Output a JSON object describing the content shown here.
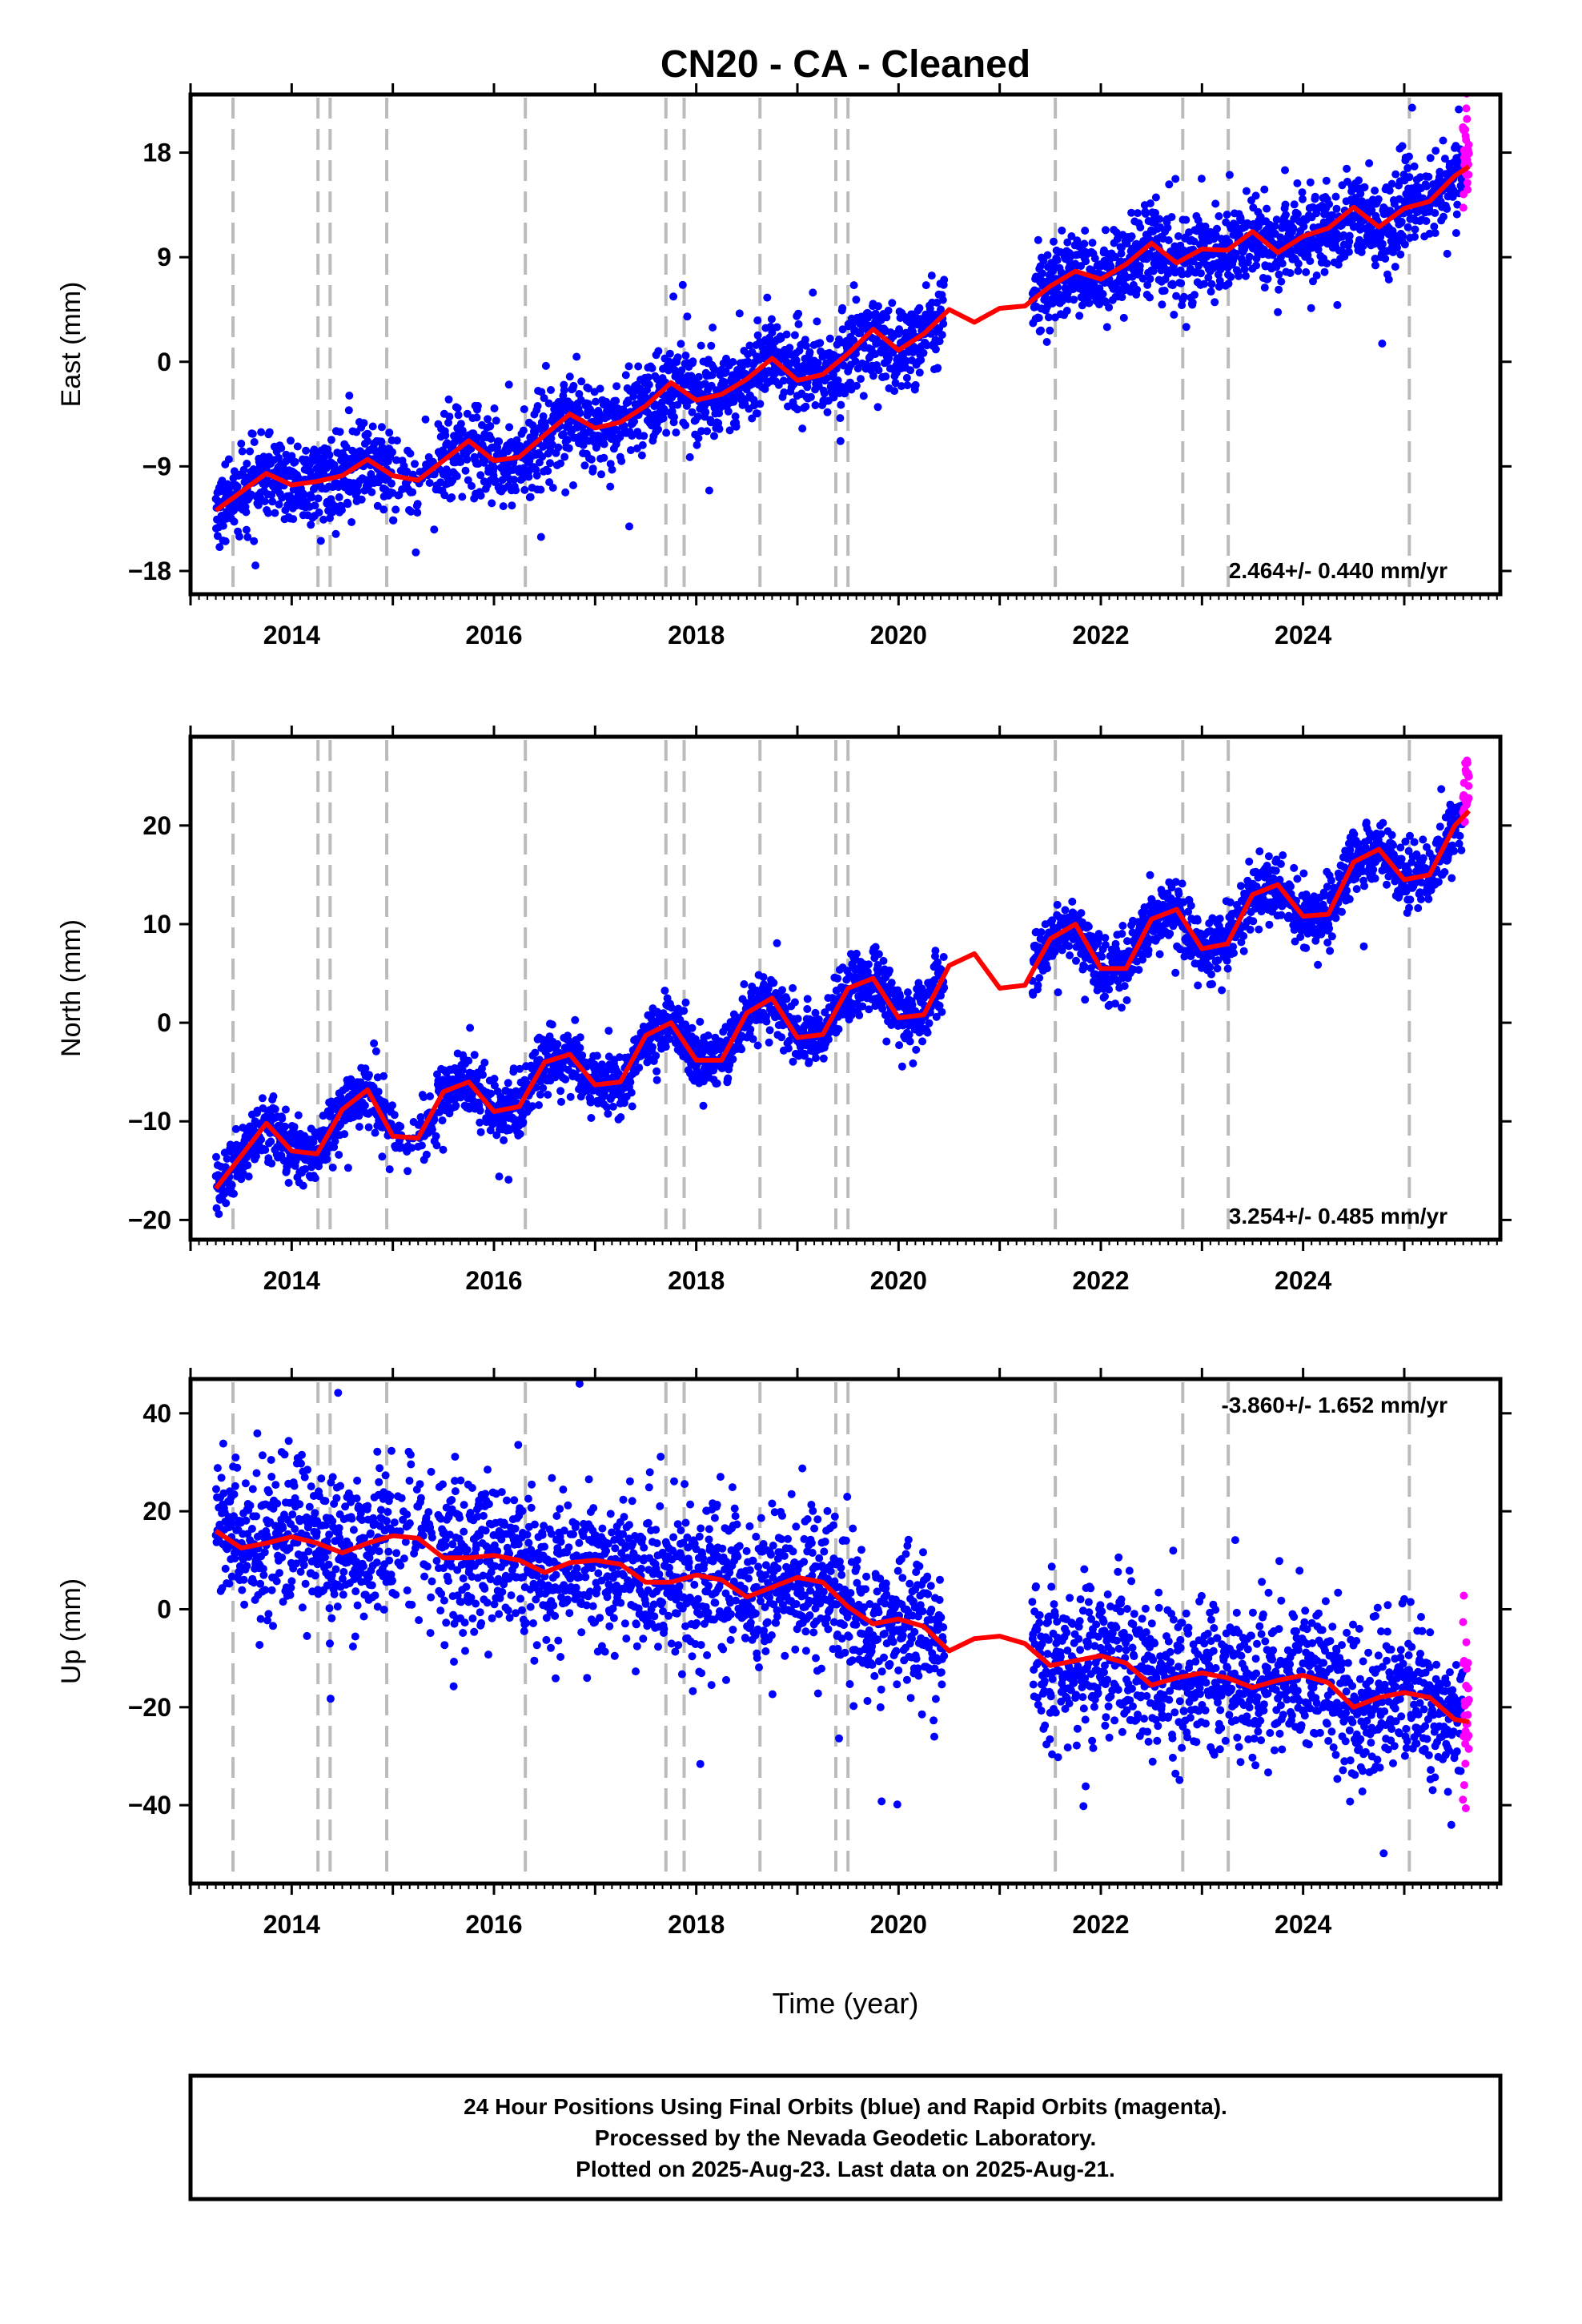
{
  "colors": {
    "final_orbits": "#0000ff",
    "rapid_orbits": "#ff00ff",
    "model": "#ff0000",
    "event_lines": "#bbbbbb",
    "frame": "#000000"
  },
  "chart_data": {
    "type": "scatter",
    "title": "CN20  - CA - Cleaned",
    "xlabel": "Time (year)",
    "xlim": [
      2013.0,
      2025.95
    ],
    "xticks": [
      2014,
      2016,
      2018,
      2020,
      2022,
      2024
    ],
    "event_lines": [
      2013.42,
      2014.26,
      2014.38,
      2014.94,
      2016.31,
      2017.7,
      2017.88,
      2018.63,
      2019.38,
      2019.5,
      2021.55,
      2022.81,
      2023.26,
      2025.05
    ],
    "final_start": 2013.25,
    "final_end": 2025.58,
    "rapid_start": 2025.58,
    "rapid_end": 2025.64,
    "gap": [
      2020.45,
      2021.32
    ],
    "panels": [
      {
        "component": "East",
        "ylabel": "East (mm)",
        "ylim": [
          -20,
          23
        ],
        "yticks": [
          -18,
          -9,
          0,
          9,
          18
        ],
        "rate_label": "2.464+/- 0.440 mm/yr",
        "rate_position": "bottom-right",
        "rate_mm_per_yr": 2.464,
        "offset_mm": -10.0,
        "annual_amplitude_mm": 1.5,
        "noise_sd_mm": 1.8,
        "jumps": [
          {
            "year": 2021.3,
            "mm": 3.0
          }
        ],
        "model_curve": [
          [
            2013.25,
            -12.8
          ],
          [
            2013.5,
            -11.2
          ],
          [
            2013.75,
            -9.6
          ],
          [
            2014.0,
            -10.6
          ],
          [
            2014.25,
            -10.3
          ],
          [
            2014.5,
            -9.8
          ],
          [
            2014.75,
            -8.4
          ],
          [
            2015.0,
            -9.8
          ],
          [
            2015.25,
            -10.2
          ],
          [
            2015.5,
            -8.5
          ],
          [
            2015.75,
            -6.8
          ],
          [
            2016.0,
            -8.5
          ],
          [
            2016.25,
            -8.2
          ],
          [
            2016.5,
            -6.3
          ],
          [
            2016.75,
            -4.5
          ],
          [
            2017.0,
            -5.7
          ],
          [
            2017.25,
            -5.2
          ],
          [
            2017.5,
            -3.8
          ],
          [
            2017.75,
            -1.8
          ],
          [
            2018.0,
            -3.3
          ],
          [
            2018.25,
            -2.8
          ],
          [
            2018.5,
            -1.5
          ],
          [
            2018.75,
            0.3
          ],
          [
            2019.0,
            -1.6
          ],
          [
            2019.25,
            -1.1
          ],
          [
            2019.5,
            0.7
          ],
          [
            2019.75,
            2.8
          ],
          [
            2020.0,
            1.0
          ],
          [
            2020.25,
            2.4
          ],
          [
            2020.5,
            4.5
          ],
          [
            2020.75,
            3.4
          ],
          [
            2021.0,
            4.6
          ],
          [
            2021.25,
            4.8
          ],
          [
            2021.5,
            6.5
          ],
          [
            2021.75,
            7.8
          ],
          [
            2022.0,
            7.1
          ],
          [
            2022.25,
            8.4
          ],
          [
            2022.5,
            10.2
          ],
          [
            2022.75,
            8.5
          ],
          [
            2023.0,
            9.7
          ],
          [
            2023.25,
            9.6
          ],
          [
            2023.5,
            11.2
          ],
          [
            2023.75,
            9.4
          ],
          [
            2024.0,
            10.8
          ],
          [
            2024.25,
            11.5
          ],
          [
            2024.5,
            13.3
          ],
          [
            2024.75,
            11.6
          ],
          [
            2025.0,
            13.2
          ],
          [
            2025.25,
            13.8
          ],
          [
            2025.5,
            16.0
          ],
          [
            2025.64,
            16.8
          ]
        ]
      },
      {
        "component": "North",
        "ylabel": "North (mm)",
        "ylim": [
          -22,
          29
        ],
        "yticks": [
          -20,
          -10,
          0,
          10,
          20
        ],
        "rate_label": "3.254+/- 0.485 mm/yr",
        "rate_position": "bottom-right",
        "rate_mm_per_yr": 3.254,
        "offset_mm": -16.0,
        "annual_amplitude_mm": 3.5,
        "noise_sd_mm": 1.5,
        "jumps": [],
        "model_curve": [
          [
            2013.25,
            -16.8
          ],
          [
            2013.5,
            -13.5
          ],
          [
            2013.75,
            -10.2
          ],
          [
            2014.0,
            -13.0
          ],
          [
            2014.25,
            -13.3
          ],
          [
            2014.5,
            -8.8
          ],
          [
            2014.75,
            -6.8
          ],
          [
            2015.0,
            -11.5
          ],
          [
            2015.25,
            -11.7
          ],
          [
            2015.5,
            -7.0
          ],
          [
            2015.75,
            -6.0
          ],
          [
            2016.0,
            -9.0
          ],
          [
            2016.25,
            -8.5
          ],
          [
            2016.5,
            -4.0
          ],
          [
            2016.75,
            -3.2
          ],
          [
            2017.0,
            -6.3
          ],
          [
            2017.25,
            -6.0
          ],
          [
            2017.5,
            -1.3
          ],
          [
            2017.75,
            0.0
          ],
          [
            2018.0,
            -3.8
          ],
          [
            2018.25,
            -3.8
          ],
          [
            2018.5,
            1.0
          ],
          [
            2018.75,
            2.5
          ],
          [
            2019.0,
            -1.5
          ],
          [
            2019.25,
            -1.2
          ],
          [
            2019.5,
            3.5
          ],
          [
            2019.75,
            4.5
          ],
          [
            2020.0,
            0.5
          ],
          [
            2020.25,
            0.8
          ],
          [
            2020.5,
            5.8
          ],
          [
            2020.75,
            7.0
          ],
          [
            2021.0,
            3.5
          ],
          [
            2021.25,
            3.8
          ],
          [
            2021.5,
            8.5
          ],
          [
            2021.75,
            10.0
          ],
          [
            2022.0,
            5.5
          ],
          [
            2022.25,
            5.5
          ],
          [
            2022.5,
            10.5
          ],
          [
            2022.75,
            11.5
          ],
          [
            2023.0,
            7.5
          ],
          [
            2023.25,
            8.0
          ],
          [
            2023.5,
            13.0
          ],
          [
            2023.75,
            14.0
          ],
          [
            2024.0,
            10.8
          ],
          [
            2024.25,
            11.0
          ],
          [
            2024.5,
            16.3
          ],
          [
            2024.75,
            17.6
          ],
          [
            2025.0,
            14.5
          ],
          [
            2025.25,
            15.0
          ],
          [
            2025.5,
            20.0
          ],
          [
            2025.64,
            21.5
          ]
        ]
      },
      {
        "component": "Up",
        "ylabel": "Up (mm)",
        "ylim": [
          -56,
          47
        ],
        "yticks": [
          -40,
          -20,
          0,
          20,
          40
        ],
        "rate_label": "-3.860+/- 1.652 mm/yr",
        "rate_position": "top-right",
        "rate_mm_per_yr": -3.86,
        "offset_mm": 15.0,
        "annual_amplitude_mm": 2.0,
        "noise_sd_mm": 7.5,
        "jumps": [
          {
            "year": 2021.3,
            "mm": -4.0
          }
        ],
        "model_curve": [
          [
            2013.25,
            16.0
          ],
          [
            2013.5,
            12.5
          ],
          [
            2013.75,
            13.5
          ],
          [
            2014.0,
            14.8
          ],
          [
            2014.25,
            13.5
          ],
          [
            2014.5,
            11.5
          ],
          [
            2014.75,
            13.5
          ],
          [
            2015.0,
            15.0
          ],
          [
            2015.25,
            14.5
          ],
          [
            2015.5,
            10.5
          ],
          [
            2015.75,
            10.5
          ],
          [
            2016.0,
            11.0
          ],
          [
            2016.25,
            10.0
          ],
          [
            2016.5,
            7.5
          ],
          [
            2016.75,
            9.5
          ],
          [
            2017.0,
            10.0
          ],
          [
            2017.25,
            9.2
          ],
          [
            2017.5,
            5.5
          ],
          [
            2017.75,
            5.5
          ],
          [
            2018.0,
            7.0
          ],
          [
            2018.25,
            6.0
          ],
          [
            2018.5,
            2.5
          ],
          [
            2018.75,
            4.5
          ],
          [
            2019.0,
            6.5
          ],
          [
            2019.25,
            5.5
          ],
          [
            2019.5,
            0.5
          ],
          [
            2019.75,
            -3.0
          ],
          [
            2020.0,
            -2.0
          ],
          [
            2020.25,
            -3.5
          ],
          [
            2020.5,
            -8.5
          ],
          [
            2020.75,
            -6.0
          ],
          [
            2021.0,
            -5.5
          ],
          [
            2021.25,
            -7.0
          ],
          [
            2021.5,
            -11.5
          ],
          [
            2021.75,
            -10.5
          ],
          [
            2022.0,
            -9.5
          ],
          [
            2022.25,
            -11.0
          ],
          [
            2022.5,
            -15.5
          ],
          [
            2022.75,
            -14.0
          ],
          [
            2023.0,
            -13.0
          ],
          [
            2023.25,
            -14.0
          ],
          [
            2023.5,
            -16.0
          ],
          [
            2023.75,
            -14.5
          ],
          [
            2024.0,
            -13.5
          ],
          [
            2024.25,
            -15.0
          ],
          [
            2024.5,
            -20.0
          ],
          [
            2024.75,
            -18.0
          ],
          [
            2025.0,
            -17.0
          ],
          [
            2025.25,
            -18.0
          ],
          [
            2025.5,
            -22.5
          ],
          [
            2025.64,
            -23.0
          ]
        ]
      }
    ]
  },
  "footer": {
    "line1": "24 Hour Positions Using Final Orbits (blue) and Rapid Orbits (magenta).",
    "line2": "Processed by the Nevada Geodetic Laboratory.",
    "line3": "Plotted on 2025-Aug-23. Last data on 2025-Aug-21."
  }
}
